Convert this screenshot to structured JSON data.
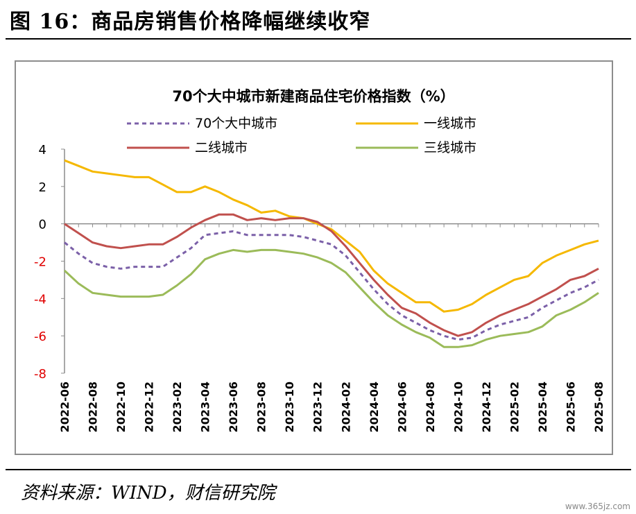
{
  "figure_title": "图 16：商品房销售价格降幅继续收窄",
  "source_note": "资料来源：WIND，财信研究院",
  "watermark": "www.365jz.com",
  "chart_data": {
    "type": "line",
    "title": "70个大中城市新建商品住宅价格指数（%）",
    "xlabel": "",
    "ylabel": "",
    "ylim": [
      -8,
      4
    ],
    "yticks": [
      4,
      2,
      0,
      -2,
      -4,
      -6,
      -8
    ],
    "x": [
      "2022-06",
      "2022-07",
      "2022-08",
      "2022-09",
      "2022-10",
      "2022-11",
      "2022-12",
      "2023-01",
      "2023-02",
      "2023-03",
      "2023-04",
      "2023-05",
      "2023-06",
      "2023-07",
      "2023-08",
      "2023-09",
      "2023-10",
      "2023-11",
      "2023-12",
      "2024-01",
      "2024-02",
      "2024-03",
      "2024-04",
      "2024-05",
      "2024-06",
      "2024-07",
      "2024-08",
      "2024-09",
      "2024-10",
      "2024-11",
      "2024-12",
      "2025-01",
      "2025-02",
      "2025-03",
      "2025-04",
      "2025-05",
      "2025-06",
      "2025-07",
      "2025-08"
    ],
    "xtick_labels": [
      "2022-06",
      "2022-08",
      "2022-10",
      "2022-12",
      "2023-02",
      "2023-04",
      "2023-06",
      "2023-08",
      "2023-10",
      "2023-12",
      "2024-02",
      "2024-04",
      "2024-06",
      "2024-08",
      "2024-10",
      "2024-12",
      "2025-02",
      "2025-04",
      "2025-06",
      "2025-08"
    ],
    "grid": false,
    "legend_position": "top",
    "series": [
      {
        "name": "70个大中城市",
        "color": "#7b60a8",
        "dashed": true,
        "values": [
          -1.0,
          -1.6,
          -2.1,
          -2.3,
          -2.4,
          -2.3,
          -2.3,
          -2.3,
          -1.8,
          -1.3,
          -0.6,
          -0.5,
          -0.4,
          -0.6,
          -0.6,
          -0.6,
          -0.6,
          -0.7,
          -0.9,
          -1.1,
          -1.7,
          -2.6,
          -3.5,
          -4.3,
          -4.9,
          -5.3,
          -5.7,
          -6.0,
          -6.2,
          -6.1,
          -5.7,
          -5.4,
          -5.2,
          -5.0,
          -4.5,
          -4.1,
          -3.7,
          -3.4,
          -3.0
        ]
      },
      {
        "name": "一线城市",
        "color": "#f5b800",
        "dashed": false,
        "values": [
          3.4,
          3.1,
          2.8,
          2.7,
          2.6,
          2.5,
          2.5,
          2.1,
          1.7,
          1.7,
          2.0,
          1.7,
          1.3,
          1.0,
          0.6,
          0.7,
          0.4,
          0.3,
          0.0,
          -0.3,
          -0.9,
          -1.5,
          -2.5,
          -3.2,
          -3.7,
          -4.2,
          -4.2,
          -4.7,
          -4.6,
          -4.3,
          -3.8,
          -3.4,
          -3.0,
          -2.8,
          -2.1,
          -1.7,
          -1.4,
          -1.1,
          -0.9
        ]
      },
      {
        "name": "二线城市",
        "color": "#c0504d",
        "dashed": false,
        "values": [
          0.0,
          -0.5,
          -1.0,
          -1.2,
          -1.3,
          -1.2,
          -1.1,
          -1.1,
          -0.7,
          -0.2,
          0.2,
          0.5,
          0.5,
          0.2,
          0.3,
          0.2,
          0.3,
          0.3,
          0.1,
          -0.4,
          -1.2,
          -2.1,
          -3.0,
          -3.8,
          -4.5,
          -4.8,
          -5.3,
          -5.7,
          -6.0,
          -5.8,
          -5.3,
          -4.9,
          -4.6,
          -4.3,
          -3.9,
          -3.5,
          -3.0,
          -2.8,
          -2.4
        ]
      },
      {
        "name": "三线城市",
        "color": "#9bbb59",
        "dashed": false,
        "values": [
          -2.5,
          -3.2,
          -3.7,
          -3.8,
          -3.9,
          -3.9,
          -3.9,
          -3.8,
          -3.3,
          -2.7,
          -1.9,
          -1.6,
          -1.4,
          -1.5,
          -1.4,
          -1.4,
          -1.5,
          -1.6,
          -1.8,
          -2.1,
          -2.6,
          -3.4,
          -4.2,
          -4.9,
          -5.4,
          -5.8,
          -6.1,
          -6.6,
          -6.6,
          -6.5,
          -6.2,
          -6.0,
          -5.9,
          -5.8,
          -5.5,
          -4.9,
          -4.6,
          -4.2,
          -3.7
        ]
      }
    ]
  }
}
